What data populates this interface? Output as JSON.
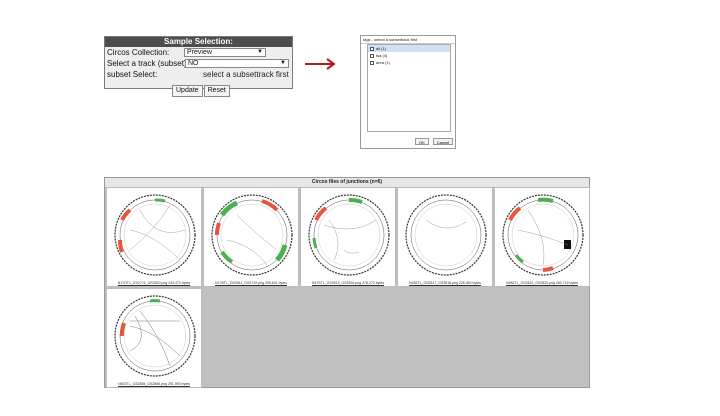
{
  "sample_selection": {
    "title": "Sample Selection:",
    "collection_label": "Circos Collection:",
    "collection_value": "Preview",
    "track_label": "Select a track (subset)",
    "track_value": "NO",
    "subset_label": "subset Select:",
    "subset_message": "select a subsettrack first",
    "update_label": "Update",
    "reset_label": "Reset"
  },
  "dialog": {
    "title": "tags - select a subsettrack first",
    "items": [
      "all (1)",
      "tsa (4)",
      "area (1)"
    ],
    "ok_label": "OK",
    "cancel_label": "Cancel"
  },
  "gallery": {
    "title": "Circos files of junctions (n=6)",
    "items": [
      {
        "caption": "N1?DTL_GS2??4_GS2820.png 243,470 bytes"
      },
      {
        "caption": "N1?BTL_GS2811_GS2?10.png 295,641 bytes"
      },
      {
        "caption": "N4?STL_GS2815_GS2816.png 278,270 bytes"
      },
      {
        "caption": "N482TL_GS2817_GS2818.png 226,462 bytes"
      },
      {
        "caption": "N482TL_GS2819_GS2820.png 260,716 bytes"
      },
      {
        "caption": "N602TL_GS2865_GS2866.png 251,990 bytes"
      }
    ]
  },
  "colors": {
    "arrow": "#b01c1c",
    "panel_header": "#4d4d4d",
    "gallery_bg": "#c0c0c0"
  }
}
